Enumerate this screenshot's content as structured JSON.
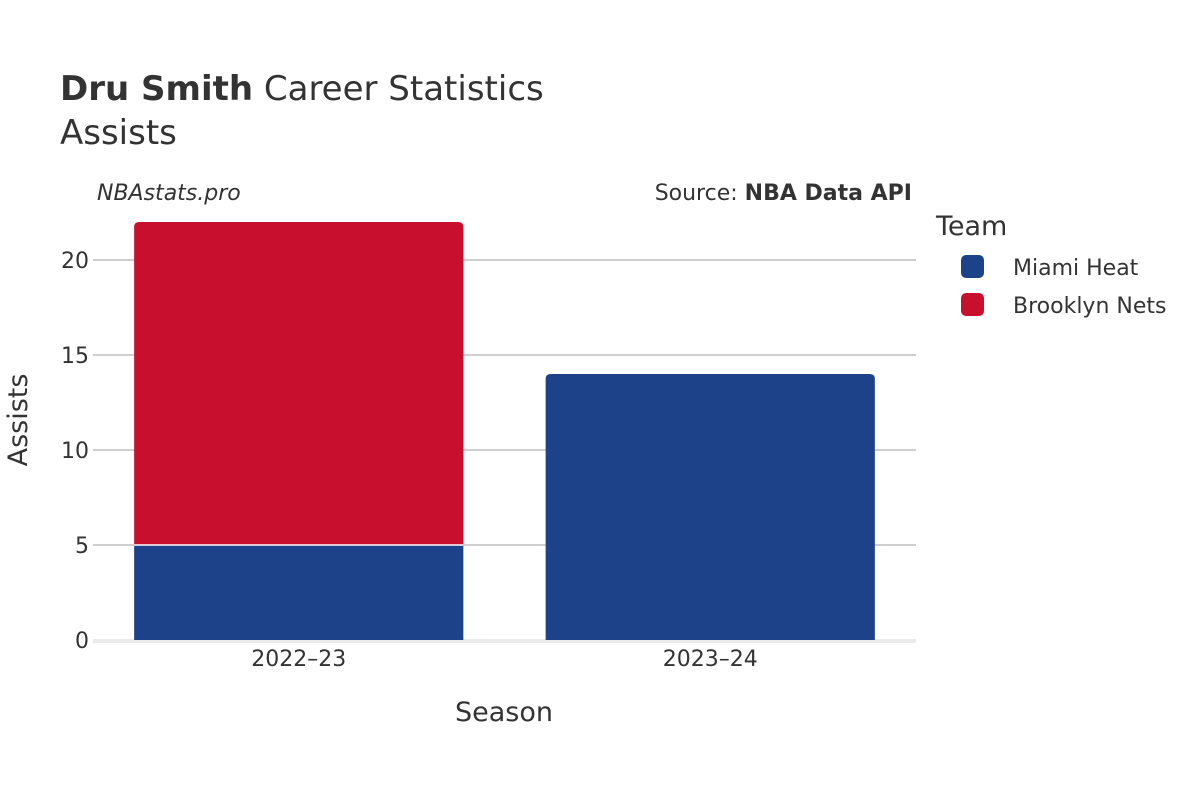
{
  "header": {
    "title_bold": "Dru Smith",
    "title_rest": " Career Statistics",
    "subtitle": "Assists"
  },
  "watermark": "NBAstats.pro",
  "source": {
    "prefix": "Source: ",
    "name": "NBA Data API"
  },
  "chart_data": {
    "type": "bar",
    "stacked": true,
    "categories": [
      "2022–23",
      "2023–24"
    ],
    "series": [
      {
        "name": "Miami Heat",
        "values": [
          5,
          14
        ],
        "color": "#1d4289"
      },
      {
        "name": "Brooklyn Nets",
        "values": [
          17,
          0
        ],
        "color": "#c8102e"
      }
    ],
    "xlabel": "Season",
    "ylabel": "Assists",
    "ylim": [
      0,
      22
    ],
    "yticks": [
      0,
      5,
      10,
      15,
      20
    ],
    "grid": true,
    "legend": {
      "title": "Team",
      "position": "right"
    }
  }
}
